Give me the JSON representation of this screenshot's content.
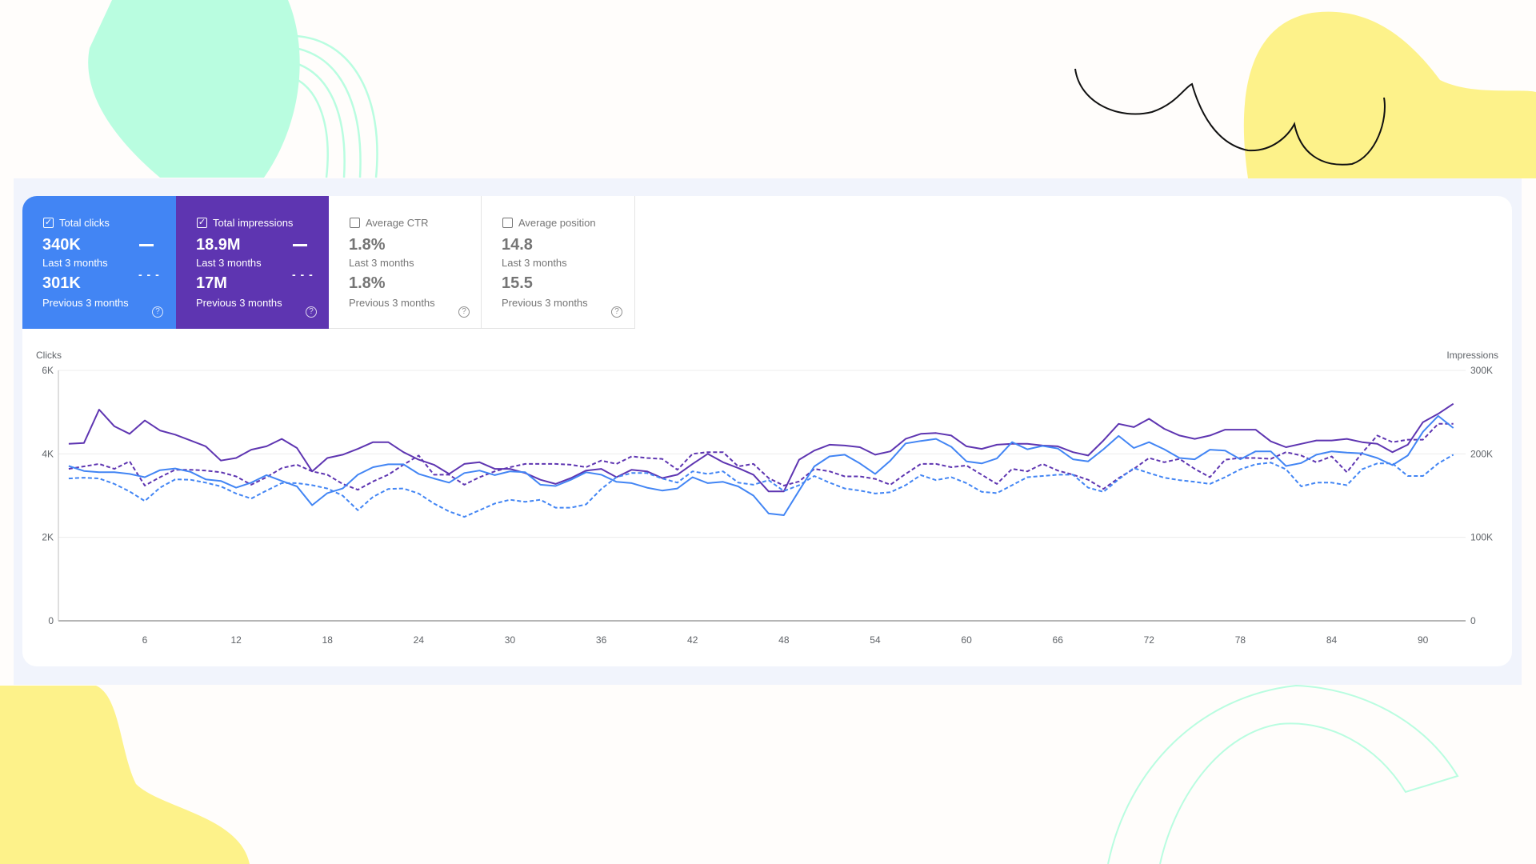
{
  "metrics": [
    {
      "label": "Total clicks",
      "checked": true,
      "value": "340K",
      "period": "Last 3 months",
      "prev_value": "301K",
      "prev_period": "Previous 3 months",
      "color": "#4285f4"
    },
    {
      "label": "Total impressions",
      "checked": true,
      "value": "18.9M",
      "period": "Last 3 months",
      "prev_value": "17M",
      "prev_period": "Previous 3 months",
      "color": "#5e35b1"
    },
    {
      "label": "Average CTR",
      "checked": false,
      "value": "1.8%",
      "period": "Last 3 months",
      "prev_value": "1.8%",
      "prev_period": "Previous 3 months"
    },
    {
      "label": "Average position",
      "checked": false,
      "value": "14.8",
      "period": "Last 3 months",
      "prev_value": "15.5",
      "prev_period": "Previous 3 months"
    }
  ],
  "chart_data": {
    "type": "line",
    "x": "days 1-92",
    "xticks": [
      "6",
      "12",
      "18",
      "24",
      "30",
      "36",
      "42",
      "48",
      "54",
      "60",
      "66",
      "72",
      "78",
      "84",
      "90"
    ],
    "xtick_values": [
      6,
      12,
      18,
      24,
      30,
      36,
      42,
      48,
      54,
      60,
      66,
      72,
      78,
      84,
      90
    ],
    "left_axis": {
      "label": "Clicks",
      "ticks": [
        "0",
        "2K",
        "4K",
        "6K"
      ],
      "range": [
        0,
        6000
      ]
    },
    "right_axis": {
      "label": "Impressions",
      "ticks": [
        "0",
        "100K",
        "200K",
        "300K"
      ],
      "range": [
        0,
        300000
      ]
    },
    "grid": true,
    "series": [
      {
        "name": "Total impressions (Last 3 months)",
        "axis": "right",
        "style": "solid",
        "color": "#5e35b1",
        "unit": "K",
        "values": [
          212,
          213,
          253,
          233,
          224,
          240,
          228,
          223,
          216,
          209,
          192,
          195,
          205,
          209,
          218,
          207,
          179,
          195,
          199,
          206,
          214,
          214,
          202,
          193,
          187,
          176,
          188,
          190,
          182,
          182,
          177,
          169,
          164,
          171,
          180,
          182,
          172,
          181,
          179,
          171,
          175,
          188,
          200,
          190,
          183,
          175,
          155,
          155,
          193,
          204,
          211,
          210,
          208,
          199,
          203,
          218,
          224,
          225,
          222,
          209,
          206,
          211,
          212,
          212,
          210,
          209,
          202,
          198,
          216,
          236,
          232,
          242,
          230,
          222,
          218,
          222,
          229,
          229,
          229,
          215,
          208,
          212,
          216,
          216,
          218,
          214,
          212,
          202,
          211,
          238,
          248,
          260
        ]
      },
      {
        "name": "Total impressions (Previous 3 months)",
        "axis": "right",
        "style": "dashed",
        "color": "#5e35b1",
        "unit": "K",
        "values": [
          182,
          185,
          188,
          182,
          191,
          162,
          172,
          181,
          181,
          180,
          178,
          173,
          163,
          172,
          183,
          187,
          179,
          175,
          164,
          157,
          167,
          175,
          187,
          198,
          175,
          175,
          163,
          172,
          179,
          184,
          188,
          188,
          188,
          187,
          184,
          192,
          188,
          197,
          195,
          194,
          181,
          200,
          202,
          202,
          185,
          188,
          171,
          162,
          167,
          182,
          179,
          173,
          173,
          170,
          163,
          176,
          188,
          188,
          184,
          186,
          175,
          164,
          182,
          179,
          188,
          180,
          175,
          169,
          158,
          171,
          182,
          195,
          190,
          194,
          182,
          172,
          193,
          195,
          195,
          194,
          202,
          198,
          190,
          197,
          178,
          201,
          222,
          214,
          217,
          217,
          236,
          236
        ]
      },
      {
        "name": "Total clicks (Last 3 months)",
        "axis": "left",
        "style": "solid",
        "color": "#4285f4",
        "unit": "",
        "values": [
          3710,
          3590,
          3560,
          3560,
          3520,
          3440,
          3610,
          3650,
          3570,
          3390,
          3350,
          3190,
          3310,
          3490,
          3350,
          3220,
          2770,
          3060,
          3170,
          3500,
          3680,
          3750,
          3750,
          3520,
          3410,
          3310,
          3540,
          3600,
          3490,
          3580,
          3560,
          3260,
          3230,
          3380,
          3560,
          3500,
          3330,
          3300,
          3190,
          3120,
          3170,
          3440,
          3300,
          3330,
          3220,
          3000,
          2570,
          2530,
          3120,
          3700,
          3940,
          3980,
          3770,
          3520,
          3840,
          4250,
          4310,
          4360,
          4170,
          3820,
          3770,
          3890,
          4280,
          4110,
          4190,
          4130,
          3870,
          3820,
          4110,
          4430,
          4140,
          4280,
          4110,
          3900,
          3870,
          4100,
          4080,
          3870,
          4060,
          4060,
          3710,
          3780,
          3980,
          4060,
          4030,
          4010,
          3900,
          3730,
          3960,
          4530,
          4910,
          4620
        ]
      },
      {
        "name": "Total clicks (Previous 3 months)",
        "axis": "left",
        "style": "dashed",
        "color": "#4285f4",
        "unit": "",
        "values": [
          3410,
          3430,
          3410,
          3280,
          3100,
          2870,
          3190,
          3390,
          3380,
          3310,
          3220,
          3050,
          2930,
          3120,
          3300,
          3300,
          3250,
          3170,
          3000,
          2650,
          2970,
          3160,
          3170,
          3050,
          2810,
          2620,
          2490,
          2650,
          2810,
          2900,
          2850,
          2900,
          2710,
          2710,
          2790,
          3160,
          3440,
          3540,
          3540,
          3410,
          3310,
          3580,
          3520,
          3580,
          3310,
          3260,
          3370,
          3110,
          3250,
          3470,
          3310,
          3170,
          3120,
          3050,
          3080,
          3250,
          3490,
          3370,
          3440,
          3300,
          3090,
          3060,
          3250,
          3440,
          3470,
          3500,
          3500,
          3190,
          3090,
          3390,
          3660,
          3540,
          3430,
          3370,
          3330,
          3280,
          3440,
          3630,
          3750,
          3790,
          3630,
          3220,
          3310,
          3310,
          3250,
          3630,
          3770,
          3770,
          3470,
          3470,
          3770,
          3980
        ]
      }
    ]
  }
}
